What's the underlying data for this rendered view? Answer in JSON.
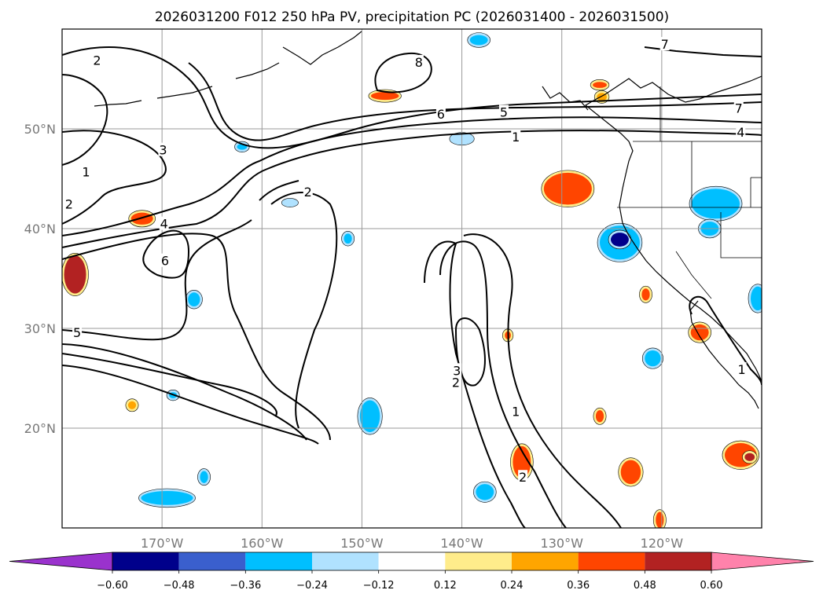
{
  "chart_data": {
    "type": "map-contour",
    "title": "2026031200 F012 250 hPa PV, precipitation PC (2026031400 - 2026031500)",
    "lon_range": [
      -180,
      -110
    ],
    "lat_range": [
      10,
      60
    ],
    "lon_ticks": [
      {
        "value": -170,
        "label": "170°W"
      },
      {
        "value": -160,
        "label": "160°W"
      },
      {
        "value": -150,
        "label": "150°W"
      },
      {
        "value": -140,
        "label": "140°W"
      },
      {
        "value": -130,
        "label": "130°W"
      },
      {
        "value": -120,
        "label": "120°W"
      }
    ],
    "lat_ticks": [
      {
        "value": 20,
        "label": "20°N"
      },
      {
        "value": 30,
        "label": "30°N"
      },
      {
        "value": 40,
        "label": "40°N"
      },
      {
        "value": 50,
        "label": "50°N"
      }
    ],
    "grid": true,
    "contour_labels": [
      {
        "text": "2",
        "lon": -176.5,
        "lat": 56.9
      },
      {
        "text": "3",
        "lon": -169.9,
        "lat": 47.9
      },
      {
        "text": "1",
        "lon": -177.6,
        "lat": 45.7
      },
      {
        "text": "2",
        "lon": -179.3,
        "lat": 42.5
      },
      {
        "text": "4",
        "lon": -169.8,
        "lat": 40.5
      },
      {
        "text": "6",
        "lon": -169.7,
        "lat": 36.8
      },
      {
        "text": "5",
        "lon": -178.5,
        "lat": 29.6
      },
      {
        "text": "2",
        "lon": -155.4,
        "lat": 43.7
      },
      {
        "text": "8",
        "lon": -144.3,
        "lat": 56.7
      },
      {
        "text": "6",
        "lon": -142.1,
        "lat": 51.5
      },
      {
        "text": "5",
        "lon": -135.8,
        "lat": 51.7
      },
      {
        "text": "1",
        "lon": -134.6,
        "lat": 49.2
      },
      {
        "text": "7",
        "lon": -119.7,
        "lat": 58.5
      },
      {
        "text": "7",
        "lon": -112.3,
        "lat": 52.1
      },
      {
        "text": "4",
        "lon": -112.1,
        "lat": 49.7
      },
      {
        "text": "3",
        "lon": -140.5,
        "lat": 25.8
      },
      {
        "text": "2",
        "lon": -140.6,
        "lat": 24.6
      },
      {
        "text": "1",
        "lon": -134.6,
        "lat": 21.7
      },
      {
        "text": "2",
        "lon": -133.9,
        "lat": 15.1
      },
      {
        "text": "1",
        "lon": -112.0,
        "lat": 25.9
      }
    ],
    "colorbar": {
      "ticks": [
        "−0.60",
        "−0.48",
        "−0.36",
        "−0.24",
        "−0.12",
        "0.12",
        "0.24",
        "0.36",
        "0.48",
        "0.60"
      ],
      "colors": [
        "#9a32cd",
        "#00008b",
        "#3a5fcd",
        "#00bfff",
        "#b0e2ff",
        "#ffffff",
        "#ffec8b",
        "#ffa500",
        "#ff4500",
        "#b22222",
        "#ff82ab"
      ]
    },
    "precip_blobs": [
      {
        "lon": -178.7,
        "lat": 35.4,
        "rx": 1.1,
        "ry": 1.9,
        "level": 0.48
      },
      {
        "lon": -172.0,
        "lat": 41.0,
        "rx": 1.1,
        "ry": 0.6,
        "level": 0.36
      },
      {
        "lon": -173.0,
        "lat": 22.3,
        "rx": 0.4,
        "ry": 0.4,
        "level": 0.24
      },
      {
        "lon": -166.8,
        "lat": 32.9,
        "rx": 0.6,
        "ry": 0.7,
        "level": -0.36
      },
      {
        "lon": -168.9,
        "lat": 23.3,
        "rx": 0.4,
        "ry": 0.3,
        "level": -0.36
      },
      {
        "lon": -169.5,
        "lat": 13.0,
        "rx": 2.6,
        "ry": 0.7,
        "level": -0.36
      },
      {
        "lon": -165.8,
        "lat": 15.1,
        "rx": 0.4,
        "ry": 0.6,
        "level": -0.36
      },
      {
        "lon": -162.0,
        "lat": 48.2,
        "rx": 0.5,
        "ry": 0.3,
        "level": -0.36
      },
      {
        "lon": -157.2,
        "lat": 42.6,
        "rx": 0.6,
        "ry": 0.2,
        "level": -0.24
      },
      {
        "lon": -151.4,
        "lat": 39.0,
        "rx": 0.4,
        "ry": 0.5,
        "level": -0.36
      },
      {
        "lon": -149.2,
        "lat": 21.2,
        "rx": 1.0,
        "ry": 1.6,
        "level": -0.36
      },
      {
        "lon": -147.7,
        "lat": 53.3,
        "rx": 1.4,
        "ry": 0.4,
        "level": 0.36
      },
      {
        "lon": -140.0,
        "lat": 49.0,
        "rx": 1.0,
        "ry": 0.4,
        "level": -0.24
      },
      {
        "lon": -138.3,
        "lat": 58.9,
        "rx": 0.9,
        "ry": 0.5,
        "level": -0.36
      },
      {
        "lon": -129.4,
        "lat": 44.0,
        "rx": 2.4,
        "ry": 1.6,
        "level": 0.36
      },
      {
        "lon": -124.2,
        "lat": 38.6,
        "rx": 2.0,
        "ry": 1.7,
        "level": -0.36
      },
      {
        "lon": -124.2,
        "lat": 38.9,
        "rx": 0.9,
        "ry": 0.7,
        "level": -0.6
      },
      {
        "lon": -114.6,
        "lat": 42.5,
        "rx": 2.4,
        "ry": 1.5,
        "level": -0.36
      },
      {
        "lon": -115.2,
        "lat": 40.0,
        "rx": 0.9,
        "ry": 0.7,
        "level": -0.36
      },
      {
        "lon": -110.4,
        "lat": 33.0,
        "rx": 0.7,
        "ry": 1.2,
        "level": -0.36
      },
      {
        "lon": -120.9,
        "lat": 27.0,
        "rx": 0.8,
        "ry": 0.8,
        "level": -0.36
      },
      {
        "lon": -116.2,
        "lat": 29.6,
        "rx": 0.9,
        "ry": 0.8,
        "level": 0.36
      },
      {
        "lon": -121.6,
        "lat": 33.4,
        "rx": 0.4,
        "ry": 0.6,
        "level": 0.36
      },
      {
        "lon": -135.4,
        "lat": 29.3,
        "rx": 0.3,
        "ry": 0.4,
        "level": 0.36
      },
      {
        "lon": -137.7,
        "lat": 13.6,
        "rx": 0.9,
        "ry": 0.8,
        "level": -0.36
      },
      {
        "lon": -134.0,
        "lat": 16.6,
        "rx": 0.9,
        "ry": 1.6,
        "level": 0.36
      },
      {
        "lon": -126.2,
        "lat": 21.2,
        "rx": 0.4,
        "ry": 0.6,
        "level": 0.36
      },
      {
        "lon": -123.1,
        "lat": 15.6,
        "rx": 1.0,
        "ry": 1.2,
        "level": 0.36
      },
      {
        "lon": -120.2,
        "lat": 10.8,
        "rx": 0.4,
        "ry": 0.8,
        "level": 0.36
      },
      {
        "lon": -112.1,
        "lat": 17.3,
        "rx": 1.6,
        "ry": 1.2,
        "level": 0.36
      },
      {
        "lon": -111.2,
        "lat": 17.1,
        "rx": 0.5,
        "ry": 0.4,
        "level": 0.48
      },
      {
        "lon": -126.0,
        "lat": 53.2,
        "rx": 0.5,
        "ry": 0.4,
        "level": 0.24
      },
      {
        "lon": -126.2,
        "lat": 54.4,
        "rx": 0.7,
        "ry": 0.3,
        "level": 0.36
      }
    ]
  }
}
